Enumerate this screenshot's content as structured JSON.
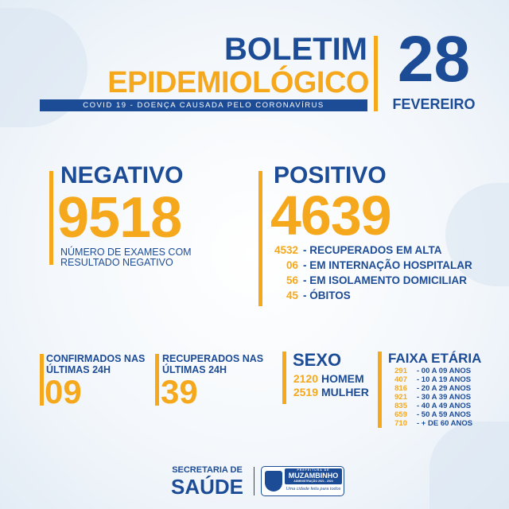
{
  "header": {
    "title_line1": "BOLETIM",
    "title_line2": "EPIDEMIOLÓGICO",
    "subtitle": "COVID 19 - DOENÇA CAUSADA PELO CORONAVÍRUS",
    "day": "28",
    "month": "FEVEREIRO"
  },
  "negative": {
    "label": "NEGATIVO",
    "value": "9518",
    "description_line1": "NÚMERO DE EXAMES COM",
    "description_line2": "RESULTADO NEGATIVO"
  },
  "positive": {
    "label": "POSITIVO",
    "value": "4639",
    "items": [
      {
        "value": "4532",
        "label": "- RECUPERADOS EM ALTA"
      },
      {
        "value": "06",
        "label": "- EM INTERNAÇÃO HOSPITALAR"
      },
      {
        "value": "56",
        "label": "- EM ISOLAMENTO DOMICILIAR"
      },
      {
        "value": "45",
        "label": "- ÓBITOS"
      }
    ]
  },
  "confirmed24h": {
    "label_line1": "CONFIRMADOS NAS",
    "label_line2": "ÚLTIMAS 24H",
    "value": "09"
  },
  "recovered24h": {
    "label_line1": "RECUPERADOS NAS",
    "label_line2": "ÚLTIMAS 24H",
    "value": "39"
  },
  "sex": {
    "title": "SEXO",
    "items": [
      {
        "value": "2120",
        "label": "HOMEM"
      },
      {
        "value": "2519",
        "label": "MULHER"
      }
    ]
  },
  "age": {
    "title": "FAIXA ETÁRIA",
    "items": [
      {
        "value": "291",
        "label": "- 00 A 09 ANOS"
      },
      {
        "value": "407",
        "label": "- 10 A 19 ANOS"
      },
      {
        "value": "816",
        "label": "- 20 A 29 ANOS"
      },
      {
        "value": "921",
        "label": "- 30 A 39 ANOS"
      },
      {
        "value": "835",
        "label": "- 40 A 49 ANOS"
      },
      {
        "value": "659",
        "label": "- 50 A 59 ANOS"
      },
      {
        "value": "710",
        "label": "- + DE 60 ANOS"
      }
    ]
  },
  "footer": {
    "dept_line1": "SECRETARIA DE",
    "dept_line2": "SAÚDE",
    "logo_top": "PREFEITURA DE",
    "logo_name": "MUZAMBINHO",
    "logo_admin": "ADMINISTRAÇÃO 2021 - 2024",
    "logo_slogan": "Uma cidade feita para todos"
  },
  "colors": {
    "blue": "#1d4c97",
    "orange": "#f6a81c"
  }
}
